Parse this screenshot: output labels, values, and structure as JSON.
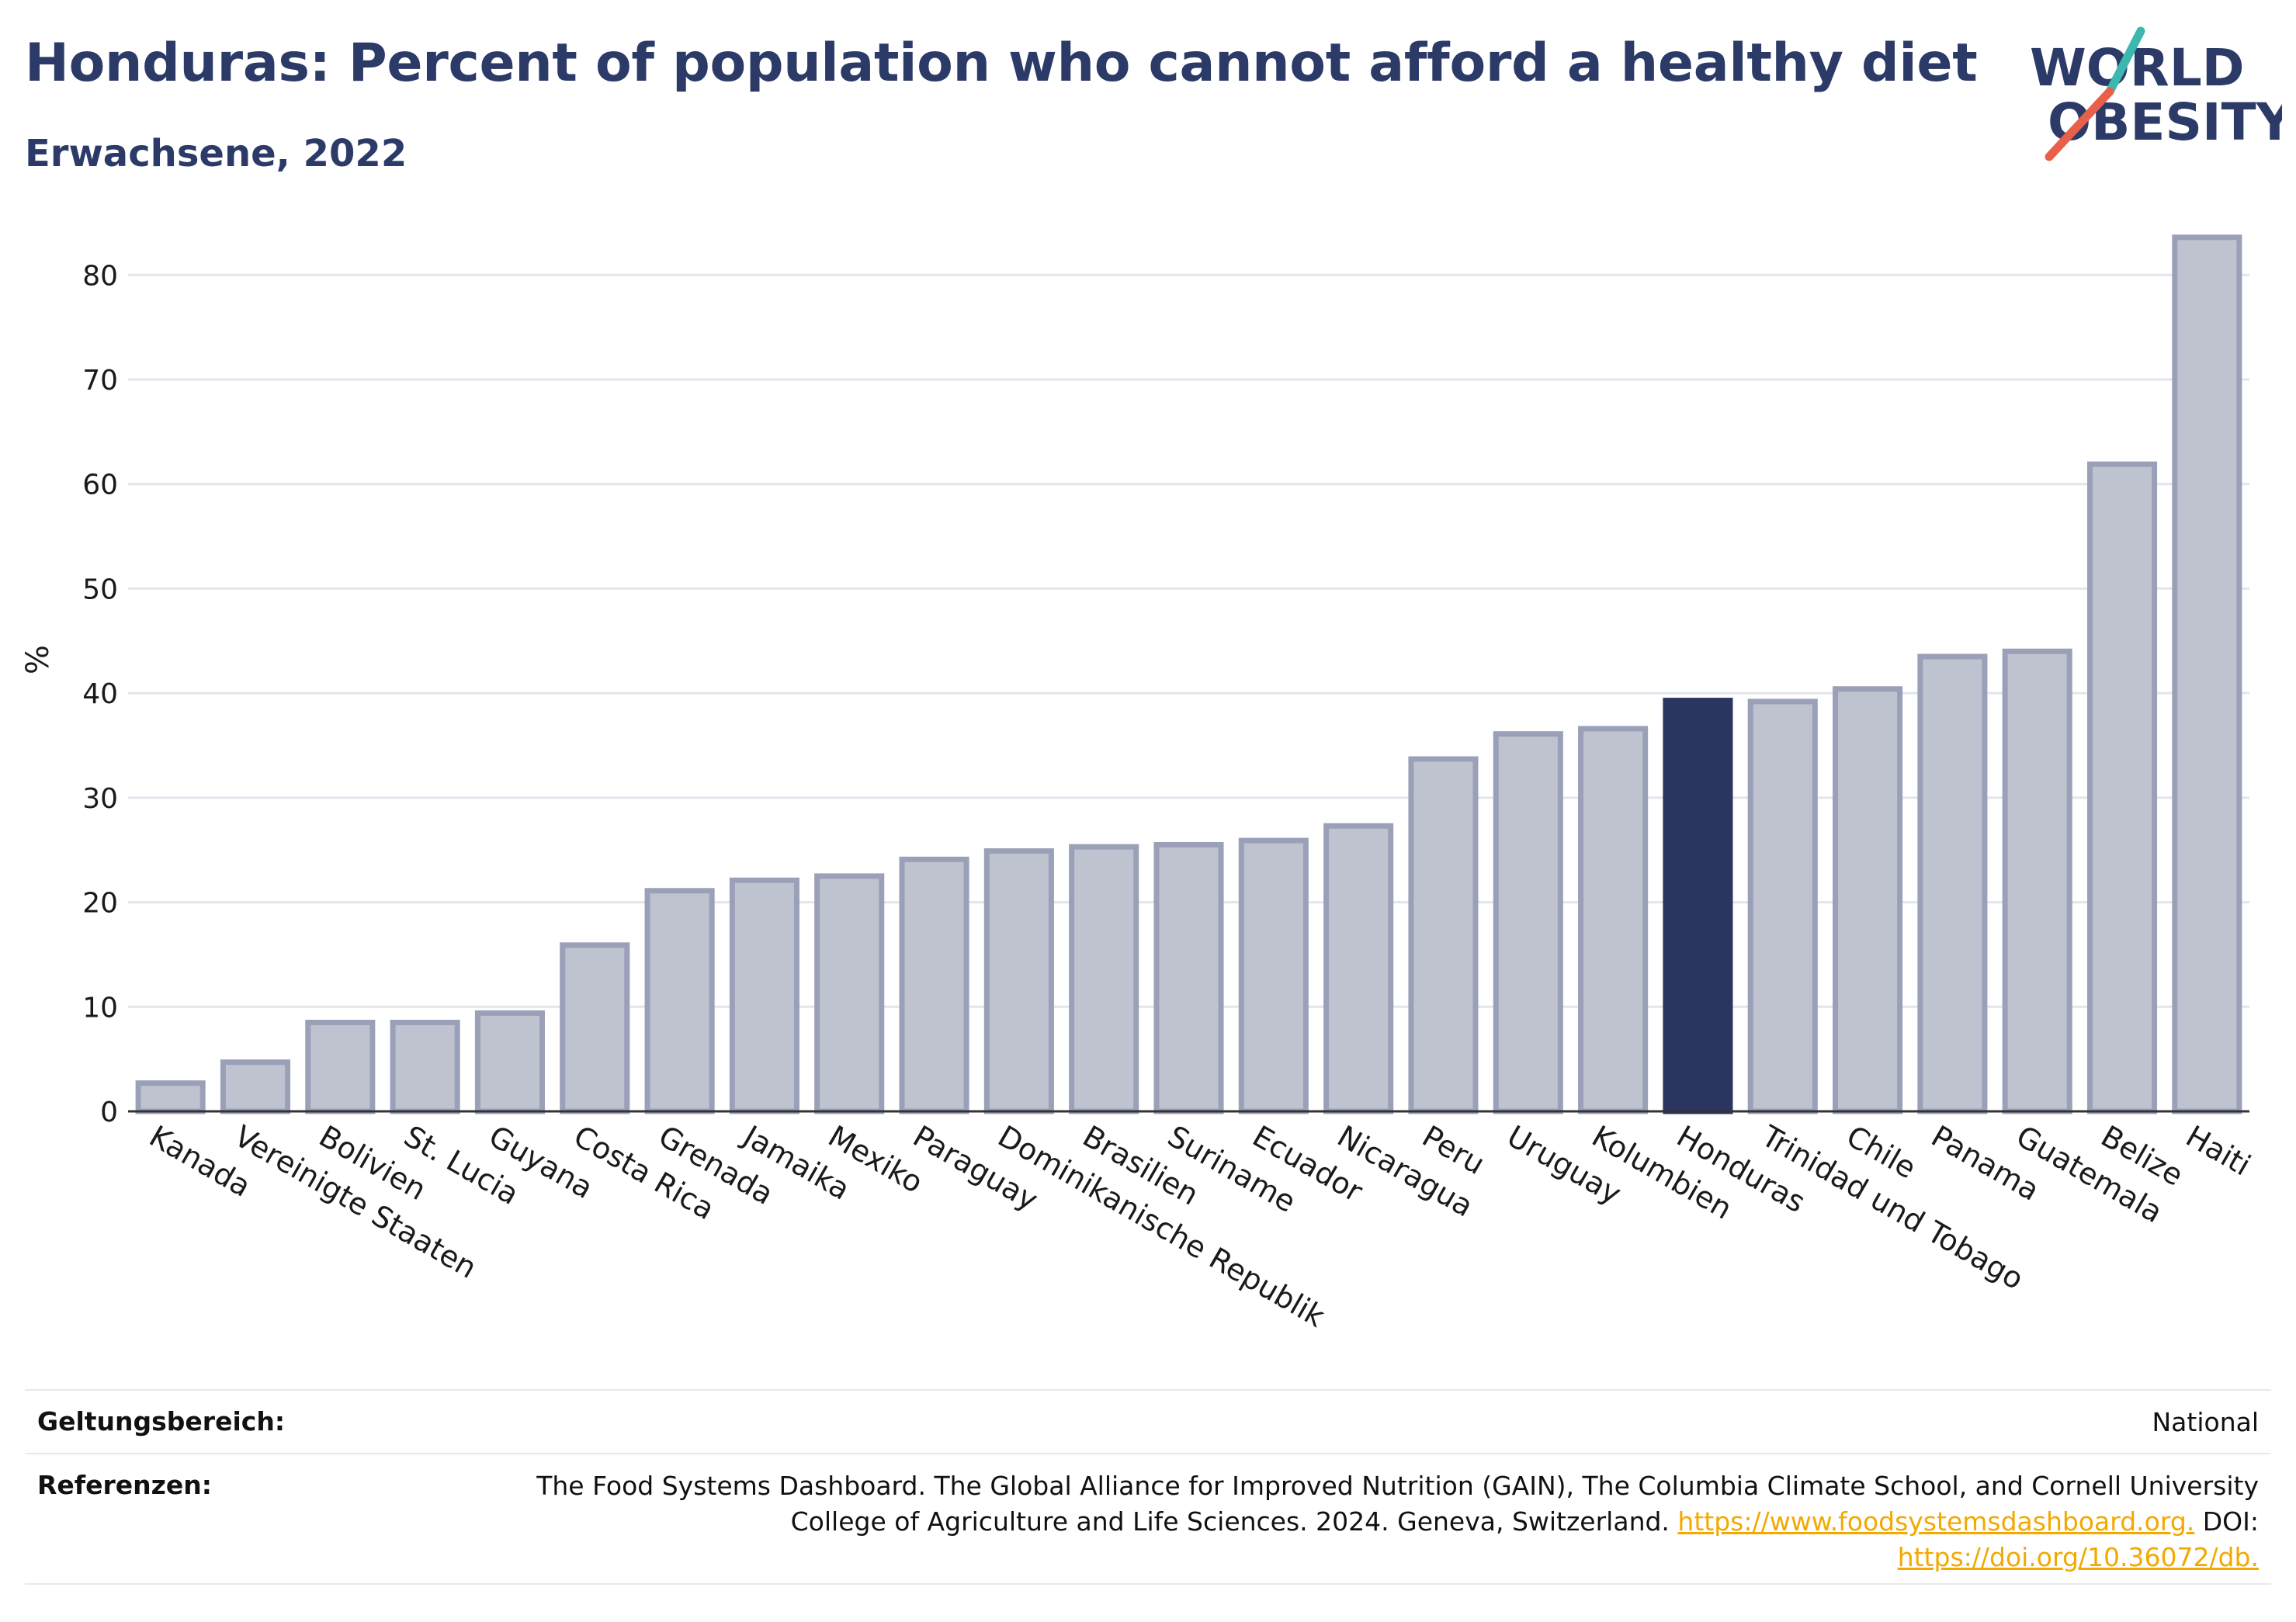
{
  "header": {
    "title": "Honduras: Percent of population who cannot afford a healthy diet",
    "subtitle": "Erwachsene, 2022"
  },
  "logo": {
    "line1": "WORLD",
    "line2": "OBESITY",
    "colors": {
      "text": "#2b3a67",
      "slash_top": "#3cb8b0",
      "slash_bottom": "#e8604c"
    }
  },
  "chart_data": {
    "type": "bar",
    "ylabel": "%",
    "ylim": [
      0,
      87
    ],
    "yticks": [
      0,
      10,
      20,
      30,
      40,
      50,
      60,
      70,
      80
    ],
    "grid": true,
    "highlight": "Honduras",
    "colors": {
      "bar": "#bfc3d0",
      "bar_edge": "#9aa0b8",
      "highlight": "#2b3562"
    },
    "categories": [
      "Kanada",
      "Vereinigte Staaten",
      "Bolivien",
      "St. Lucia",
      "Guyana",
      "Costa Rica",
      "Grenada",
      "Jamaika",
      "Mexiko",
      "Paraguay",
      "Dominikanische Republik",
      "Brasilien",
      "Suriname",
      "Ecuador",
      "Nicaragua",
      "Peru",
      "Uruguay",
      "Kolumbien",
      "Honduras",
      "Trinidad und Tobago",
      "Chile",
      "Panama",
      "Guatemala",
      "Belize",
      "Haiti"
    ],
    "values": [
      2.7,
      4.7,
      8.5,
      8.5,
      9.4,
      15.9,
      21.1,
      22.1,
      22.5,
      24.1,
      24.9,
      25.3,
      25.5,
      25.9,
      27.3,
      33.7,
      36.1,
      36.6,
      39.3,
      39.2,
      40.4,
      43.5,
      44.0,
      61.9,
      83.6
    ]
  },
  "footer": {
    "scope_label": "Geltungsbereich:",
    "scope_value": "National",
    "refs_label": "Referenzen:",
    "refs_line1": "The Food Systems Dashboard. The Global Alliance for Improved Nutrition (GAIN), The Columbia Climate School, and Cornell University",
    "refs_line2_text": "College of Agriculture and Life Sciences. 2024. Geneva, Switzerland. ",
    "refs_link1": "https://www.foodsystemsdashboard.org.",
    "refs_doi_label": " DOI:",
    "refs_link2": "https://doi.org/10.36072/db."
  }
}
